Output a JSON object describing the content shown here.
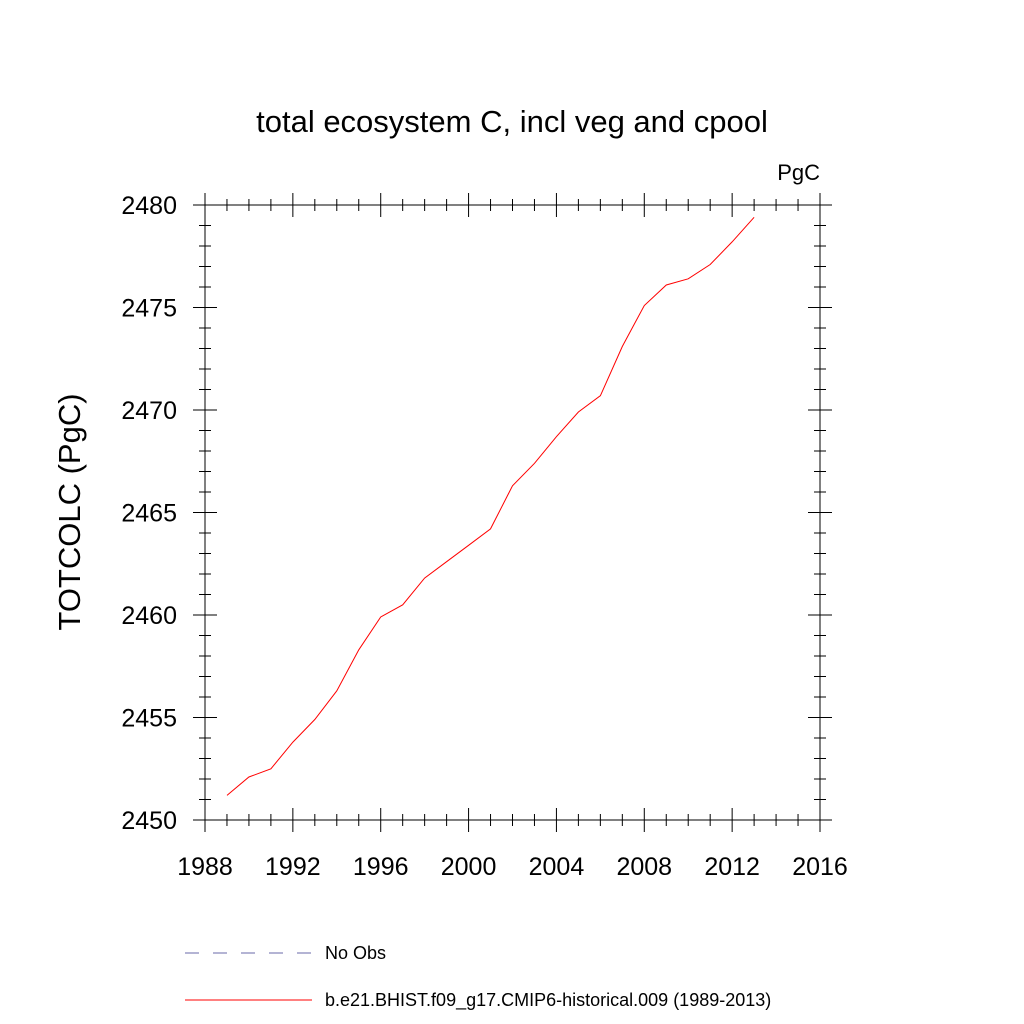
{
  "chart_data": {
    "type": "line",
    "title": "total ecosystem C, incl veg and cpool",
    "units_label": "PgC",
    "xlabel": "",
    "ylabel": "TOTCOLC  (PgC)",
    "xlim": [
      1988,
      2016
    ],
    "ylim": [
      2450,
      2480
    ],
    "x_major_ticks": [
      1988,
      1992,
      1996,
      2000,
      2004,
      2008,
      2012,
      2016
    ],
    "y_major_ticks": [
      2450,
      2455,
      2460,
      2465,
      2470,
      2475,
      2480
    ],
    "grid": false,
    "legend_position": "bottom",
    "series": [
      {
        "name": "b.e21.BHIST.f09_g17.CMIP6-historical.009 (1989-2013)",
        "color": "#ff0000",
        "style": "solid",
        "x": [
          1989,
          1990,
          1991,
          1992,
          1993,
          1994,
          1995,
          1996,
          1997,
          1998,
          1999,
          2000,
          2001,
          2002,
          2003,
          2004,
          2005,
          2006,
          2007,
          2008,
          2009,
          2010,
          2011,
          2012,
          2013
        ],
        "y": [
          2451.2,
          2452.1,
          2452.5,
          2453.8,
          2454.9,
          2456.3,
          2458.3,
          2459.9,
          2460.5,
          2461.8,
          2462.6,
          2463.4,
          2464.2,
          2466.3,
          2467.4,
          2468.7,
          2469.9,
          2470.7,
          2473.1,
          2475.1,
          2476.1,
          2476.4,
          2477.1,
          2478.2,
          2479.4
        ]
      },
      {
        "name": "No Obs",
        "color": "#6a6aaa",
        "style": "dashed",
        "x": [],
        "y": []
      }
    ]
  }
}
